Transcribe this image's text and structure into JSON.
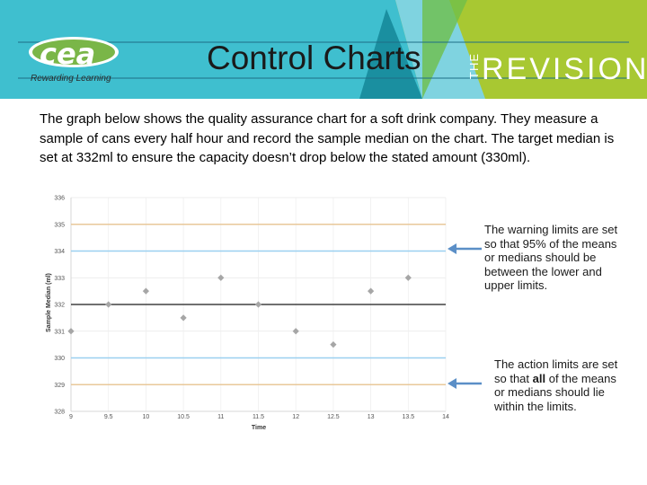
{
  "header": {
    "title": "Control Charts",
    "logo_text": "cea",
    "logo_tagline": "Rewarding Learning",
    "brand_small": "THE",
    "brand_main": "REVISION",
    "colors": {
      "teal": "#3fbfcf",
      "lime": "#a8c832",
      "deep_teal": "#1a8fa0",
      "green": "#7ab648"
    }
  },
  "intro": "The graph below shows the quality assurance chart for a soft drink company. They measure a sample of cans every half hour and record the sample median on the chart. The target median is set at 332ml to ensure the capacity doesn’t drop below the stated amount (330ml).",
  "annotations": {
    "warning_text": "The warning limits are set so that 95% of the means or medians should be between the lower and upper limits.",
    "action_prefix": "The action limits are set so that ",
    "action_bold": "all",
    "action_suffix": " of the means or medians should lie within the limits."
  },
  "chart_data": {
    "type": "scatter",
    "xlabel": "Time",
    "ylabel": "Sample Median (ml)",
    "xlim": [
      9,
      14
    ],
    "ylim": [
      328,
      336
    ],
    "x_ticks": [
      "9",
      "9.5",
      "10",
      "10.5",
      "11",
      "11.5",
      "12",
      "12.5",
      "13",
      "13.5",
      "14"
    ],
    "y_ticks": [
      "328",
      "329",
      "330",
      "331",
      "332",
      "333",
      "334",
      "335",
      "336"
    ],
    "points": [
      {
        "x": 9,
        "y": 331
      },
      {
        "x": 9.5,
        "y": 332
      },
      {
        "x": 10,
        "y": 332.5
      },
      {
        "x": 10.5,
        "y": 331.5
      },
      {
        "x": 11,
        "y": 333
      },
      {
        "x": 11.5,
        "y": 332
      },
      {
        "x": 12,
        "y": 331
      },
      {
        "x": 12.5,
        "y": 330.5
      },
      {
        "x": 13,
        "y": 332.5
      },
      {
        "x": 13.5,
        "y": 333
      }
    ],
    "reference_lines": [
      {
        "y": 335,
        "role": "upper action limit",
        "color": "#e8c89a"
      },
      {
        "y": 334,
        "role": "upper warning limit",
        "color": "#9ad0f0"
      },
      {
        "y": 332,
        "role": "target median",
        "color": "#404040"
      },
      {
        "y": 330,
        "role": "lower warning limit",
        "color": "#9ad0f0"
      },
      {
        "y": 329,
        "role": "lower action limit",
        "color": "#e8c89a"
      }
    ],
    "grid": true,
    "marker_color": "#a6a6a6",
    "arrow_color": "#5b8fc7"
  }
}
